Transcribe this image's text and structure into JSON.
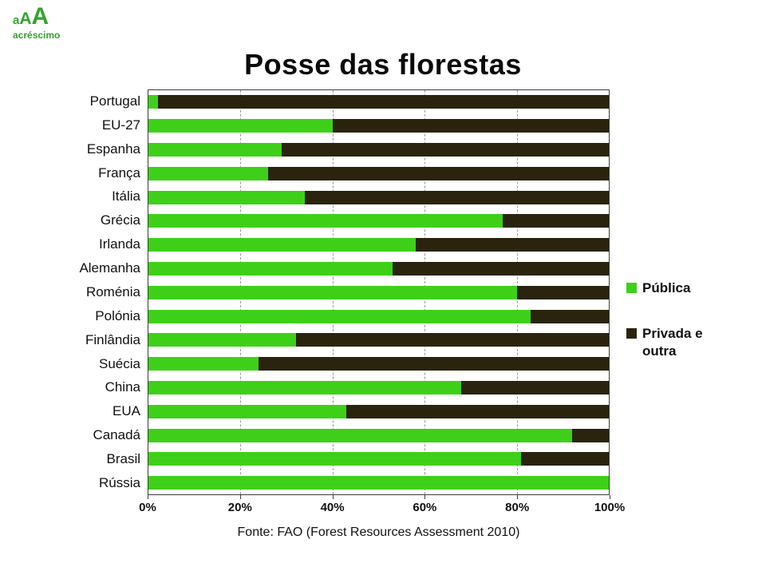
{
  "logo": {
    "a1": "a",
    "a2": "A",
    "a3": "A",
    "subtitle": "acréscimo",
    "color": "#33a32c"
  },
  "legend": [
    {
      "label": "Pública",
      "color": "#3ed019"
    },
    {
      "label": "Privada e outra",
      "color": "#2a240e"
    }
  ],
  "chart_data": {
    "type": "bar",
    "orientation": "horizontal",
    "stacked": true,
    "title": "Posse das florestas",
    "source": "Fonte: FAO (Forest Resources Assessment 2010)",
    "categories": [
      "Portugal",
      "EU-27",
      "Espanha",
      "França",
      "Itália",
      "Grécia",
      "Irlanda",
      "Alemanha",
      "Roménia",
      "Polónia",
      "Finlândia",
      "Suécia",
      "China",
      "EUA",
      "Canadá",
      "Brasil",
      "Rússia"
    ],
    "series": [
      {
        "name": "Pública",
        "color": "#3ed019",
        "values": [
          2,
          40,
          29,
          26,
          34,
          77,
          58,
          53,
          80,
          83,
          32,
          24,
          68,
          43,
          92,
          81,
          100
        ]
      },
      {
        "name": "Privada e outra",
        "color": "#2a240e",
        "values": [
          98,
          60,
          71,
          74,
          66,
          23,
          42,
          47,
          20,
          17,
          68,
          76,
          32,
          57,
          8,
          19,
          0
        ]
      }
    ],
    "x_ticks": [
      "0%",
      "20%",
      "40%",
      "60%",
      "80%",
      "100%"
    ],
    "xlim": [
      0,
      100
    ],
    "grid": "dashed-vertical",
    "legend_position": "right"
  }
}
